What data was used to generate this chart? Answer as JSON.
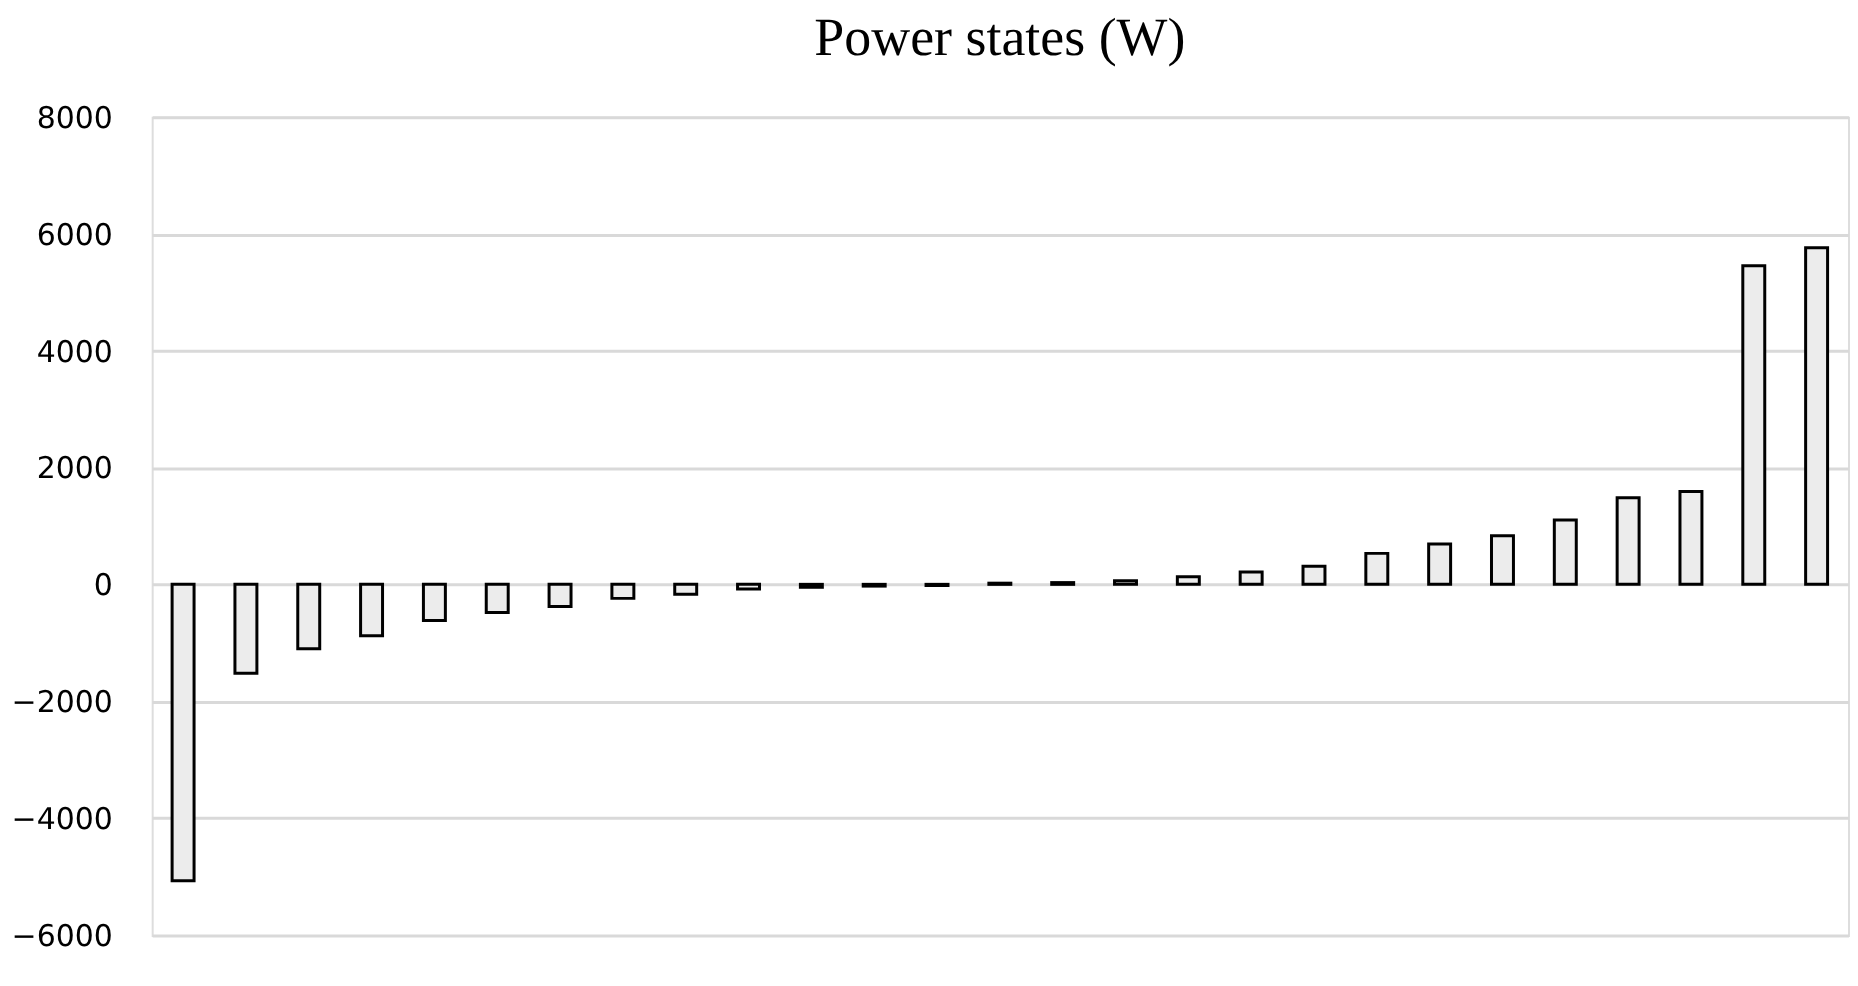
{
  "chart_data": {
    "type": "bar",
    "title": "Power states (W)",
    "categories": [
      null,
      null,
      null,
      null,
      null,
      null,
      null,
      null,
      null,
      null,
      null,
      null,
      null,
      null,
      null,
      null,
      null,
      null,
      null,
      null,
      null,
      null,
      null,
      null,
      null,
      null,
      null
    ],
    "values": [
      -5070,
      -1520,
      -1100,
      -880,
      -620,
      -480,
      -380,
      -240,
      -170,
      -80,
      -50,
      -30,
      -20,
      20,
      30,
      60,
      130,
      210,
      310,
      530,
      690,
      830,
      1100,
      1480,
      1590,
      5450,
      5760
    ],
    "color": "#ececec",
    "ylim": [
      -6000,
      8000
    ],
    "yticks": [
      -6000,
      -4000,
      -2000,
      0,
      2000,
      4000,
      6000,
      8000
    ],
    "grid": "y",
    "tick_labels": "y"
  }
}
